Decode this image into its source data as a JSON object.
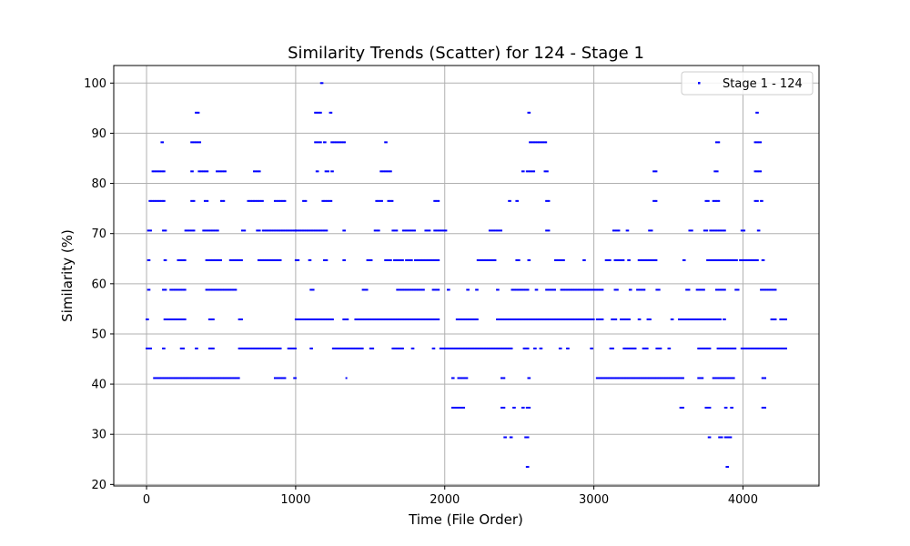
{
  "chart_data": {
    "type": "scatter",
    "title": "Similarity Trends (Scatter) for 124 - Stage 1",
    "xlabel": "Time (File Order)",
    "ylabel": "Similarity (%)",
    "xlim": [
      -220,
      4510
    ],
    "ylim": [
      19.7,
      103.5
    ],
    "xticks": [
      0,
      1000,
      2000,
      3000,
      4000
    ],
    "yticks": [
      20,
      30,
      40,
      50,
      60,
      70,
      80,
      90,
      100
    ],
    "grid": true,
    "legend_position": "top-right",
    "point_color": "#0000ff",
    "series": [
      {
        "name": "Stage 1 - 124",
        "segments": [
          {
            "y": 47.1,
            "ranges": [
              [
                0,
                30
              ],
              [
                110,
                120
              ],
              [
                230,
                250
              ],
              [
                330,
                340
              ],
              [
                420,
                450
              ],
              [
                620,
                900
              ],
              [
                950,
                1000
              ],
              [
                1100,
                1110
              ],
              [
                1250,
                1450
              ],
              [
                1500,
                1520
              ],
              [
                1650,
                1720
              ],
              [
                1780,
                1790
              ],
              [
                1920,
                1930
              ],
              [
                1970,
                2450
              ],
              [
                2530,
                2560
              ],
              [
                2600,
                2610
              ],
              [
                2640,
                2650
              ],
              [
                2770,
                2780
              ],
              [
                2820,
                2830
              ],
              [
                2980,
                2990
              ],
              [
                3110,
                3130
              ],
              [
                3200,
                3280
              ],
              [
                3330,
                3360
              ],
              [
                3420,
                3450
              ],
              [
                3500,
                3510
              ],
              [
                3700,
                3780
              ],
              [
                3830,
                3950
              ],
              [
                3990,
                4290
              ]
            ]
          },
          {
            "y": 41.2,
            "ranges": [
              [
                50,
                620
              ],
              [
                860,
                930
              ],
              [
                990,
                1000
              ],
              [
                1340,
                1345
              ],
              [
                2050,
                2060
              ],
              [
                2090,
                2150
              ],
              [
                2380,
                2400
              ],
              [
                2560,
                2570
              ],
              [
                3020,
                3600
              ],
              [
                3700,
                3730
              ],
              [
                3800,
                3940
              ],
              [
                4130,
                4150
              ]
            ]
          },
          {
            "y": 52.9,
            "ranges": [
              [
                0,
                10
              ],
              [
                120,
                190
              ],
              [
                200,
                260
              ],
              [
                420,
                450
              ],
              [
                620,
                640
              ],
              [
                1000,
                1250
              ],
              [
                1320,
                1350
              ],
              [
                1400,
                1960
              ],
              [
                2080,
                2220
              ],
              [
                2350,
                3000
              ],
              [
                3020,
                3060
              ],
              [
                3120,
                3150
              ],
              [
                3180,
                3240
              ],
              [
                3300,
                3310
              ],
              [
                3360,
                3380
              ],
              [
                3520,
                3530
              ],
              [
                3570,
                3850
              ],
              [
                3870,
                3880
              ],
              [
                4190,
                4220
              ],
              [
                4250,
                4290
              ]
            ]
          },
          {
            "y": 58.8,
            "ranges": [
              [
                10,
                20
              ],
              [
                110,
                130
              ],
              [
                160,
                260
              ],
              [
                400,
                600
              ],
              [
                1100,
                1120
              ],
              [
                1450,
                1480
              ],
              [
                1680,
                1860
              ],
              [
                1920,
                1960
              ],
              [
                2020,
                2030
              ],
              [
                2150,
                2160
              ],
              [
                2210,
                2220
              ],
              [
                2350,
                2360
              ],
              [
                2450,
                2560
              ],
              [
                2610,
                2620
              ],
              [
                2680,
                2740
              ],
              [
                2780,
                3060
              ],
              [
                3140,
                3160
              ],
              [
                3240,
                3250
              ],
              [
                3290,
                3340
              ],
              [
                3420,
                3440
              ],
              [
                3620,
                3640
              ],
              [
                3690,
                3740
              ],
              [
                3820,
                3880
              ],
              [
                3950,
                3970
              ],
              [
                4120,
                4220
              ]
            ]
          },
          {
            "y": 64.7,
            "ranges": [
              [
                10,
                20
              ],
              [
                120,
                130
              ],
              [
                210,
                260
              ],
              [
                400,
                500
              ],
              [
                560,
                640
              ],
              [
                750,
                900
              ],
              [
                1000,
                1020
              ],
              [
                1090,
                1100
              ],
              [
                1190,
                1210
              ],
              [
                1320,
                1330
              ],
              [
                1480,
                1510
              ],
              [
                1600,
                1640
              ],
              [
                1660,
                1720
              ],
              [
                1740,
                1780
              ],
              [
                1800,
                1960
              ],
              [
                2220,
                2340
              ],
              [
                2480,
                2500
              ],
              [
                2560,
                2570
              ],
              [
                2740,
                2800
              ],
              [
                2930,
                2940
              ],
              [
                3080,
                3110
              ],
              [
                3140,
                3200
              ],
              [
                3230,
                3240
              ],
              [
                3300,
                3420
              ],
              [
                3600,
                3610
              ],
              [
                3760,
                3960
              ],
              [
                3980,
                4100
              ],
              [
                4130,
                4140
              ]
            ]
          },
          {
            "y": 70.6,
            "ranges": [
              [
                10,
                30
              ],
              [
                110,
                130
              ],
              [
                260,
                320
              ],
              [
                380,
                480
              ],
              [
                640,
                660
              ],
              [
                740,
                760
              ],
              [
                780,
                880
              ],
              [
                890,
                1000
              ],
              [
                1000,
                1110
              ],
              [
                1120,
                1210
              ],
              [
                1320,
                1330
              ],
              [
                1530,
                1560
              ],
              [
                1650,
                1680
              ],
              [
                1720,
                1800
              ],
              [
                1870,
                1900
              ],
              [
                1930,
                2010
              ],
              [
                2300,
                2380
              ],
              [
                2680,
                2700
              ],
              [
                3130,
                3170
              ],
              [
                3220,
                3230
              ],
              [
                3370,
                3390
              ],
              [
                3640,
                3660
              ],
              [
                3740,
                3760
              ],
              [
                3780,
                3850
              ],
              [
                3860,
                3880
              ],
              [
                3990,
                4010
              ],
              [
                4100,
                4110
              ]
            ]
          },
          {
            "y": 76.5,
            "ranges": [
              [
                20,
                50
              ],
              [
                60,
                80
              ],
              [
                90,
                120
              ],
              [
                300,
                320
              ],
              [
                390,
                410
              ],
              [
                500,
                520
              ],
              [
                680,
                780
              ],
              [
                860,
                930
              ],
              [
                1050,
                1070
              ],
              [
                1180,
                1240
              ],
              [
                1540,
                1580
              ],
              [
                1620,
                1650
              ],
              [
                1930,
                1960
              ],
              [
                2430,
                2440
              ],
              [
                2480,
                2490
              ],
              [
                2680,
                2700
              ],
              [
                3400,
                3420
              ],
              [
                3750,
                3770
              ],
              [
                3800,
                3840
              ],
              [
                4080,
                4100
              ],
              [
                4120,
                4130
              ]
            ]
          },
          {
            "y": 82.4,
            "ranges": [
              [
                40,
                90
              ],
              [
                100,
                120
              ],
              [
                300,
                310
              ],
              [
                350,
                410
              ],
              [
                470,
                530
              ],
              [
                720,
                760
              ],
              [
                1140,
                1150
              ],
              [
                1200,
                1220
              ],
              [
                1240,
                1250
              ],
              [
                1570,
                1640
              ],
              [
                2520,
                2530
              ],
              [
                2550,
                2600
              ],
              [
                2670,
                2690
              ],
              [
                3400,
                3420
              ],
              [
                3810,
                3830
              ],
              [
                4080,
                4120
              ]
            ]
          },
          {
            "y": 88.2,
            "ranges": [
              [
                100,
                110
              ],
              [
                300,
                360
              ],
              [
                1130,
                1170
              ],
              [
                1190,
                1200
              ],
              [
                1240,
                1330
              ],
              [
                1600,
                1610
              ],
              [
                2570,
                2680
              ],
              [
                3820,
                3840
              ],
              [
                4080,
                4120
              ]
            ]
          },
          {
            "y": 94.1,
            "ranges": [
              [
                330,
                350
              ],
              [
                1130,
                1170
              ],
              [
                1230,
                1240
              ],
              [
                2560,
                2570
              ],
              [
                4090,
                4100
              ]
            ]
          },
          {
            "y": 100.0,
            "ranges": [
              [
                1170,
                1180
              ]
            ]
          },
          {
            "y": 35.3,
            "ranges": [
              [
                2050,
                2130
              ],
              [
                2380,
                2400
              ],
              [
                2460,
                2470
              ],
              [
                2520,
                2530
              ],
              [
                2550,
                2570
              ],
              [
                3580,
                3600
              ],
              [
                3750,
                3780
              ],
              [
                3880,
                3890
              ],
              [
                3920,
                3930
              ],
              [
                4130,
                4150
              ]
            ]
          },
          {
            "y": 29.4,
            "ranges": [
              [
                2400,
                2410
              ],
              [
                2440,
                2450
              ],
              [
                2540,
                2560
              ],
              [
                3770,
                3780
              ],
              [
                3840,
                3860
              ],
              [
                3880,
                3920
              ]
            ]
          },
          {
            "y": 23.5,
            "ranges": [
              [
                2550,
                2560
              ],
              [
                3890,
                3900
              ]
            ]
          }
        ]
      }
    ]
  }
}
